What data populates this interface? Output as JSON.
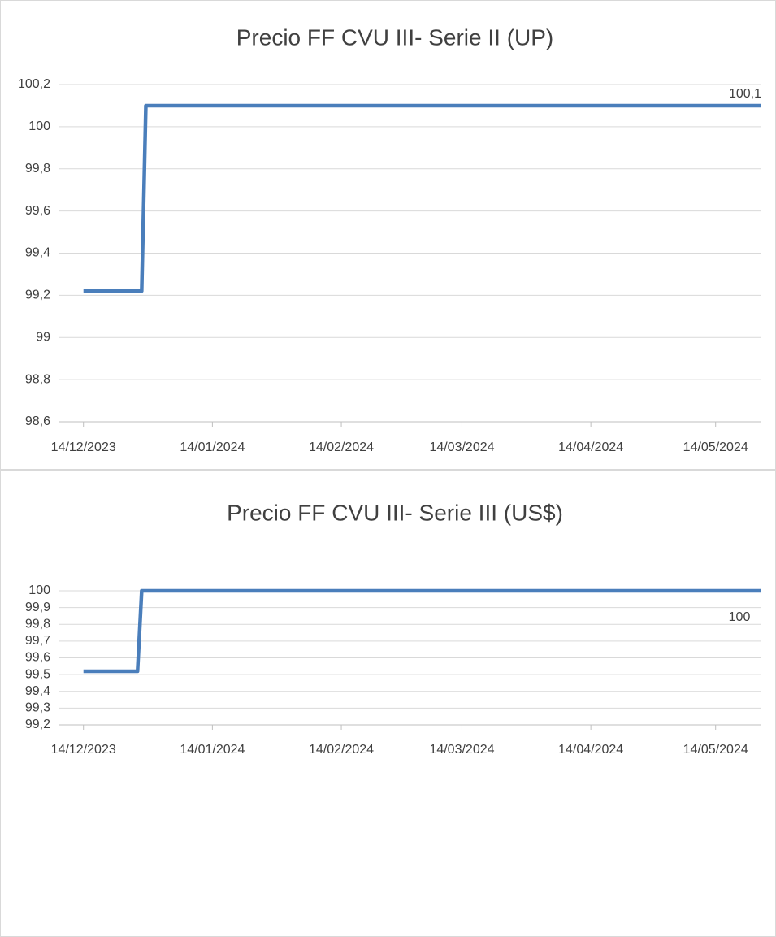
{
  "chart_data": [
    {
      "type": "line",
      "title": "Precio FF CVU III- Serie II (UP)",
      "x": [
        "2023-12-14",
        "2023-12-28",
        "2023-12-29",
        "2024-05-25"
      ],
      "series": [
        {
          "name": null,
          "color": "#4a7ebb",
          "values": [
            99.22,
            99.22,
            100.1,
            100.1
          ],
          "value_labels": [
            null,
            null,
            null,
            "100,1"
          ]
        }
      ],
      "xlim": [
        "2023-12-08",
        "2024-05-25"
      ],
      "xticks": [
        {
          "value": "2023-12-14",
          "label": "14/12/2023"
        },
        {
          "value": "2024-01-14",
          "label": "14/01/2024"
        },
        {
          "value": "2024-02-14",
          "label": "14/02/2024"
        },
        {
          "value": "2024-03-14",
          "label": "14/03/2024"
        },
        {
          "value": "2024-04-14",
          "label": "14/04/2024"
        },
        {
          "value": "2024-05-14",
          "label": "14/05/2024"
        }
      ],
      "ylim": [
        98.6,
        100.2
      ],
      "yticks": [
        {
          "value": 98.6,
          "label": "98,6"
        },
        {
          "value": 98.8,
          "label": "98,8"
        },
        99,
        {
          "value": 99.2,
          "label": "99,2"
        },
        {
          "value": 99.4,
          "label": "99,4"
        },
        {
          "value": 99.6,
          "label": "99,6"
        },
        {
          "value": 99.8,
          "label": "99,8"
        },
        100,
        {
          "value": 100.2,
          "label": "100,2"
        }
      ],
      "grid": true
    },
    {
      "type": "line",
      "title": "Precio FF CVU III- Serie III (US$)",
      "x": [
        "2023-12-14",
        "2023-12-27",
        "2023-12-28",
        "2024-05-25"
      ],
      "series": [
        {
          "name": null,
          "color": "#4a7ebb",
          "values": [
            99.52,
            99.52,
            100,
            100
          ],
          "value_labels": [
            null,
            null,
            null,
            "100"
          ]
        }
      ],
      "xlim": [
        "2023-12-08",
        "2024-05-25"
      ],
      "xticks": [
        {
          "value": "2023-12-14",
          "label": "14/12/2023"
        },
        {
          "value": "2024-01-14",
          "label": "14/01/2024"
        },
        {
          "value": "2024-02-14",
          "label": "14/02/2024"
        },
        {
          "value": "2024-03-14",
          "label": "14/03/2024"
        },
        {
          "value": "2024-04-14",
          "label": "14/04/2024"
        },
        {
          "value": "2024-05-14",
          "label": "14/05/2024"
        }
      ],
      "ylim": [
        99.2,
        100
      ],
      "yticks": [
        {
          "value": 99.2,
          "label": "99,2"
        },
        {
          "value": 99.3,
          "label": "99,3"
        },
        {
          "value": 99.4,
          "label": "99,4"
        },
        {
          "value": 99.5,
          "label": "99,5"
        },
        {
          "value": 99.6,
          "label": "99,6"
        },
        {
          "value": 99.7,
          "label": "99,7"
        },
        {
          "value": 99.8,
          "label": "99,8"
        },
        {
          "value": 99.9,
          "label": "99,9"
        },
        100
      ],
      "grid": true
    }
  ]
}
